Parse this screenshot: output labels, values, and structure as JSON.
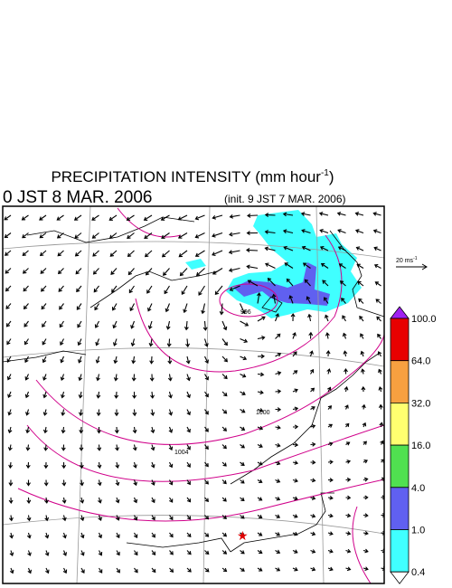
{
  "header": {
    "title": {
      "text": "PRECIPITATION INTENSITY (mm hour",
      "sup": "-1",
      "close": ")"
    },
    "valid_time": "0 JST 8 MAR. 2006",
    "init_time": "(init. 9 JST 7 MAR. 2006)"
  },
  "map": {
    "contour_labels": [
      "996",
      "1000",
      "1004"
    ]
  },
  "wind_scale": {
    "text": "20 ms",
    "sup": "-1"
  },
  "colorbar": {
    "over_color": "#a020f0",
    "under_color": "#ffffff",
    "levels": [
      "100.0",
      "64.0",
      "32.0",
      "16.0",
      "4.0",
      "1.0",
      "0.4"
    ],
    "colors": [
      "#e80000",
      "#f7a040",
      "#ffff70",
      "#50e050",
      "#6060f0",
      "#40ffff"
    ]
  }
}
